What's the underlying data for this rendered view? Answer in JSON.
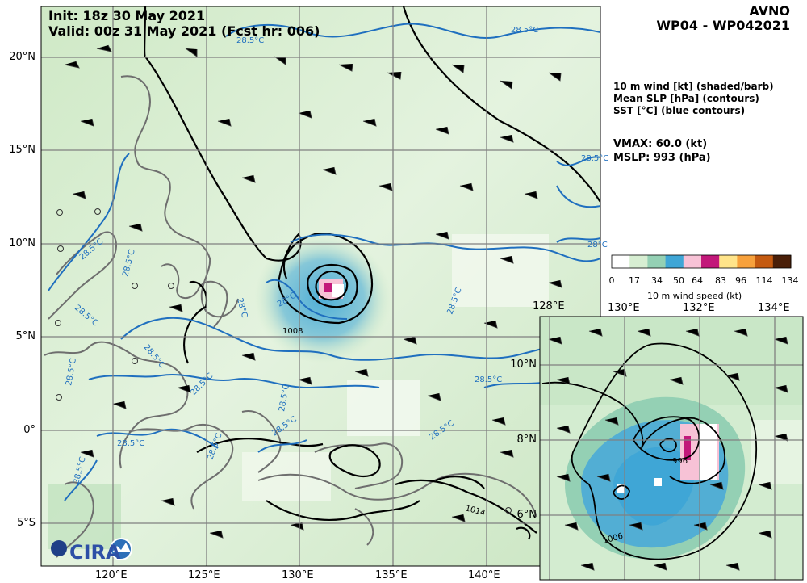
{
  "header": {
    "init": "Init:  18z 30 May 2021",
    "valid": "Valid: 00z 31 May 2021 (Fcst hr: 006)",
    "model": "AVNO",
    "storm": "WP04 - WP042021"
  },
  "legend": {
    "line1": "10 m wind [kt] (shaded/barb)",
    "line2": "Mean SLP [hPa] (contours)",
    "line3": "SST [°C] (blue contours)"
  },
  "stats": {
    "vmax": "VMAX:  60.0 (kt)",
    "mslp": "MSLP:  993 (hPa)"
  },
  "colorbar": {
    "title": "10 m wind speed (kt)",
    "ticks": [
      "0",
      "17",
      "34",
      "50",
      "64",
      "83",
      "96",
      "114",
      "134"
    ],
    "colors": [
      "#ffffff",
      "#d7eed2",
      "#94d0b4",
      "#3fa6d6",
      "#f7c2d6",
      "#c2187a",
      "#ffe48a",
      "#f7a13c",
      "#c45a10",
      "#4a1f08"
    ]
  },
  "main_map": {
    "lon_ticks": [
      "120°E",
      "125°E",
      "130°E",
      "135°E",
      "140°E"
    ],
    "lat_ticks": [
      "20°N",
      "15°N",
      "10°N",
      "5°N",
      "0°",
      "5°S"
    ],
    "sst_labels": [
      "28.5°C",
      "28.5°C",
      "28.5°C",
      "28.5°C",
      "28.5°C",
      "28.5°C",
      "28.5°C",
      "28.5°C",
      "28.5°C",
      "28.5°C",
      "28.5°C",
      "28.5°C",
      "28.5°C",
      "28.5°C",
      "28°C",
      "28°C",
      "28°C",
      "28.5°C"
    ],
    "slp_labels": [
      "1008",
      "1014"
    ]
  },
  "inset": {
    "lon_ticks": [
      "128°E",
      "130°E",
      "132°E",
      "134°E"
    ],
    "lat_ticks": [
      "10°N",
      "8°N",
      "6°N"
    ],
    "slp_labels": [
      "996",
      "1006"
    ]
  },
  "logo": {
    "text": "CIRA"
  }
}
